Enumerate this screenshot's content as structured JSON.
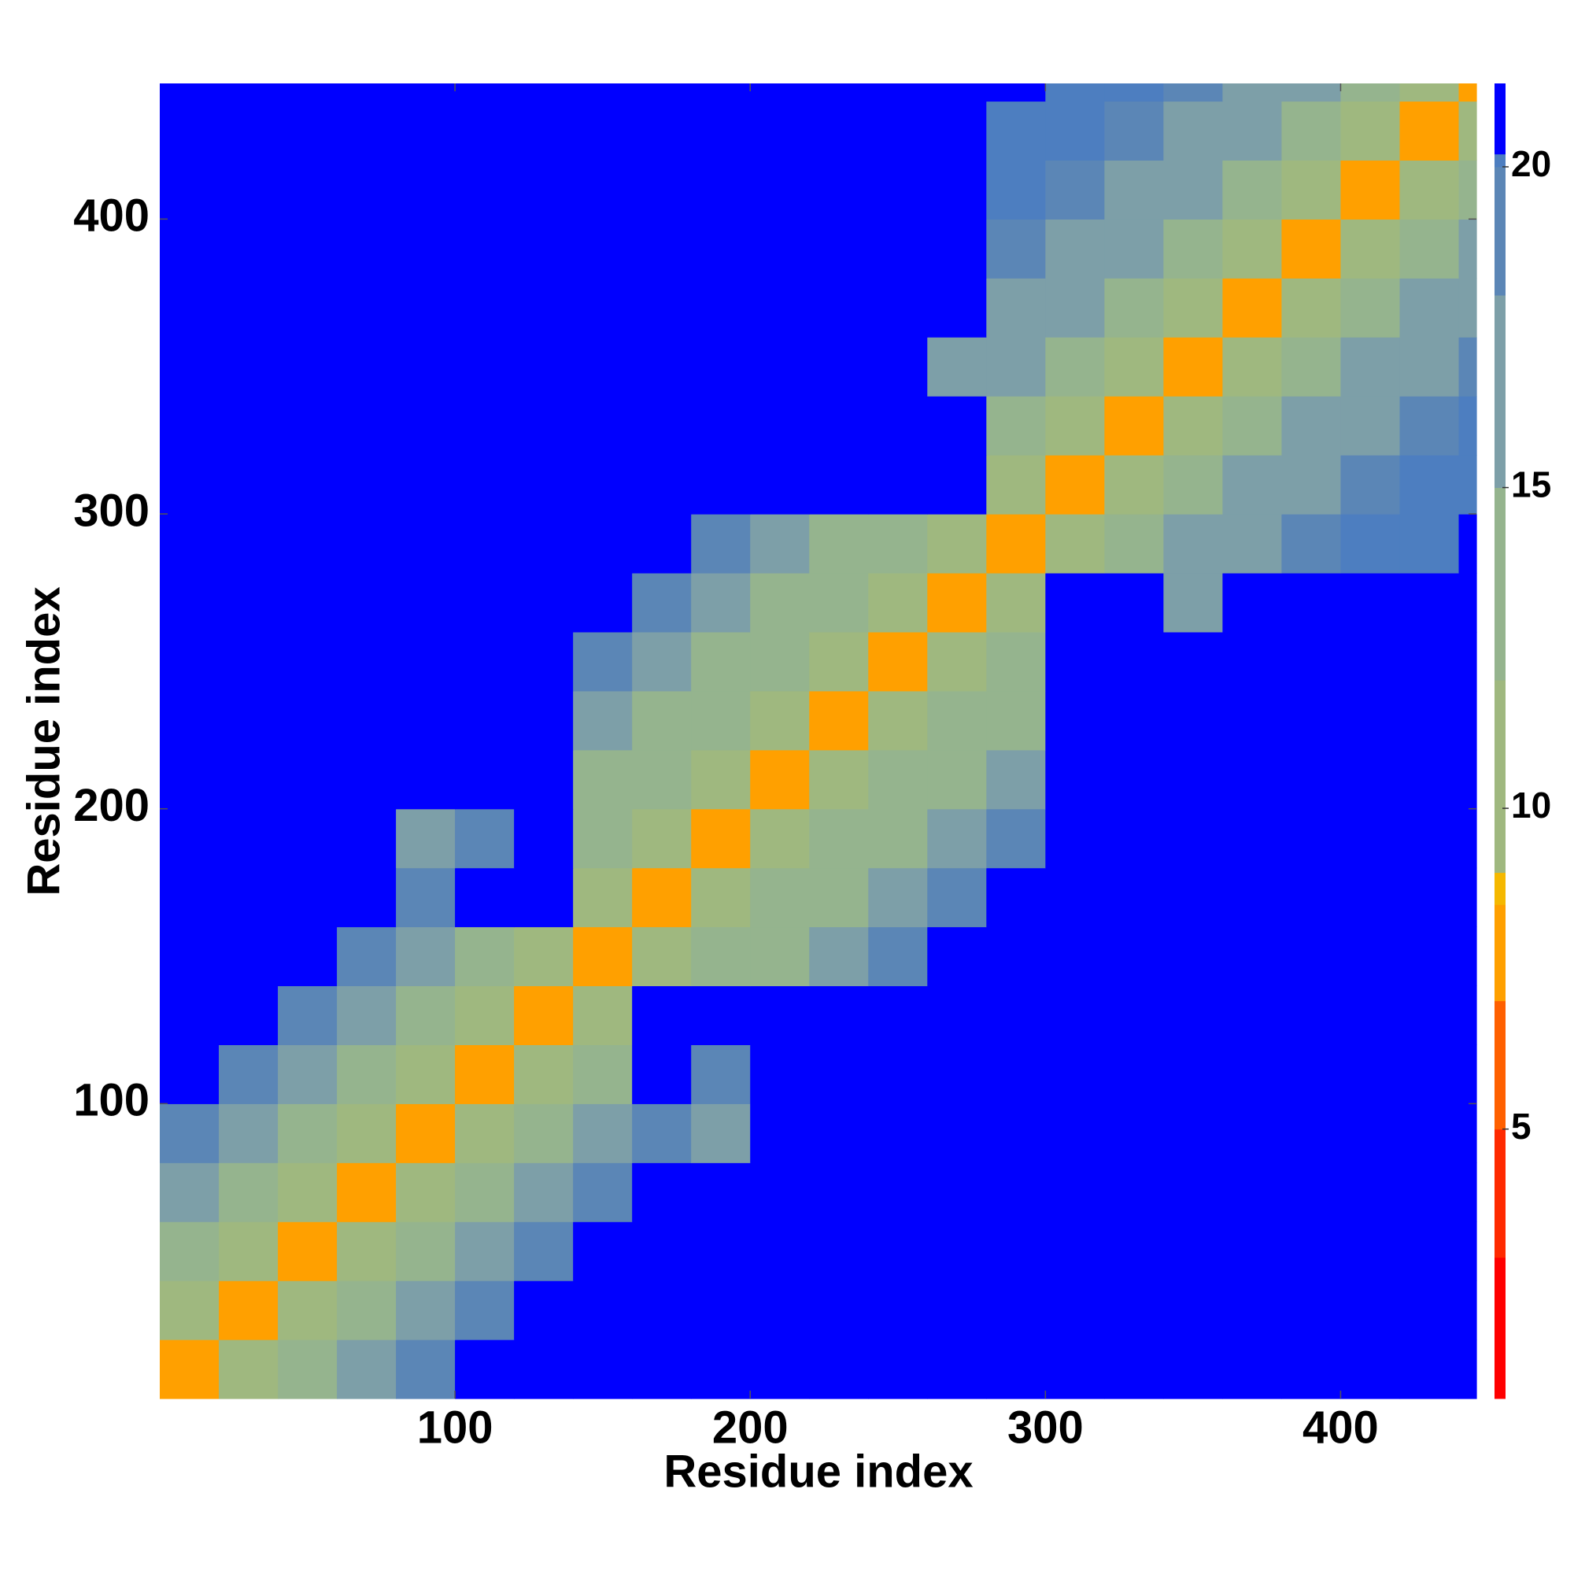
{
  "chart_data": {
    "type": "heatmap",
    "xlabel": "Residue index",
    "ylabel": "Residue index",
    "xbins": [
      0,
      20,
      40,
      60,
      80,
      100,
      120,
      140,
      160,
      180,
      200,
      220,
      240,
      260,
      280,
      300,
      320,
      340,
      360,
      380,
      400,
      420,
      440,
      446
    ],
    "ybins": [
      0,
      20,
      40,
      60,
      80,
      100,
      120,
      140,
      160,
      180,
      200,
      220,
      240,
      260,
      280,
      300,
      320,
      340,
      360,
      380,
      400,
      420,
      440,
      446
    ],
    "z": [
      [
        7,
        11,
        13,
        16,
        18,
        21,
        21,
        21,
        21,
        21,
        21,
        21,
        21,
        21,
        21,
        21,
        21,
        21,
        21,
        21,
        21,
        21,
        21
      ],
      [
        11,
        7,
        11,
        13,
        16,
        18,
        21,
        21,
        21,
        21,
        21,
        21,
        21,
        21,
        21,
        21,
        21,
        21,
        21,
        21,
        21,
        21,
        21
      ],
      [
        13,
        11,
        7,
        11,
        13,
        16,
        18,
        21,
        21,
        21,
        21,
        21,
        21,
        21,
        21,
        21,
        21,
        21,
        21,
        21,
        21,
        21,
        21
      ],
      [
        16,
        13,
        11,
        7,
        11,
        13,
        16,
        18,
        21,
        21,
        21,
        21,
        21,
        21,
        21,
        21,
        21,
        21,
        21,
        21,
        21,
        21,
        21
      ],
      [
        18,
        16,
        13,
        11,
        7,
        11,
        13,
        16,
        18,
        17,
        21,
        21,
        21,
        21,
        21,
        21,
        21,
        21,
        21,
        21,
        21,
        21,
        21
      ],
      [
        21,
        18,
        16,
        13,
        11,
        7,
        11,
        13,
        21,
        18,
        21,
        21,
        21,
        21,
        21,
        21,
        21,
        21,
        21,
        21,
        21,
        21,
        21
      ],
      [
        21,
        21,
        18,
        16,
        13,
        11,
        7,
        11,
        21,
        21,
        21,
        21,
        21,
        21,
        21,
        21,
        21,
        21,
        21,
        21,
        21,
        21,
        21
      ],
      [
        21,
        21,
        21,
        18,
        16,
        13,
        11,
        7,
        11,
        12,
        14,
        17,
        19,
        21,
        21,
        21,
        21,
        21,
        21,
        21,
        21,
        21,
        21
      ],
      [
        21,
        21,
        21,
        21,
        18,
        21,
        21,
        11,
        7,
        11,
        12,
        14,
        17,
        19,
        21,
        21,
        21,
        21,
        21,
        21,
        21,
        21,
        21
      ],
      [
        21,
        21,
        21,
        21,
        17,
        18,
        21,
        12,
        11,
        7,
        11,
        12,
        14,
        17,
        19,
        21,
        21,
        21,
        21,
        21,
        21,
        21,
        21
      ],
      [
        21,
        21,
        21,
        21,
        21,
        21,
        21,
        14,
        12,
        11,
        7,
        11,
        12,
        14,
        17,
        21,
        21,
        21,
        21,
        21,
        21,
        21,
        21
      ],
      [
        21,
        21,
        21,
        21,
        21,
        21,
        21,
        17,
        14,
        12,
        11,
        7,
        11,
        12,
        14,
        21,
        21,
        21,
        21,
        21,
        21,
        21,
        21
      ],
      [
        21,
        21,
        21,
        21,
        21,
        21,
        21,
        19,
        17,
        14,
        12,
        11,
        7,
        11,
        12,
        21,
        21,
        21,
        21,
        21,
        21,
        21,
        21
      ],
      [
        21,
        21,
        21,
        21,
        21,
        21,
        21,
        21,
        19,
        17,
        14,
        12,
        11,
        7,
        11,
        21,
        21,
        17,
        21,
        21,
        21,
        21,
        21
      ],
      [
        21,
        21,
        21,
        21,
        21,
        21,
        21,
        21,
        21,
        19,
        17,
        14,
        12,
        11,
        7,
        11,
        13,
        15,
        17,
        19,
        20,
        20,
        21
      ],
      [
        21,
        21,
        21,
        21,
        21,
        21,
        21,
        21,
        21,
        21,
        21,
        21,
        21,
        21,
        11,
        7,
        11,
        13,
        15,
        17,
        19,
        20,
        20
      ],
      [
        21,
        21,
        21,
        21,
        21,
        21,
        21,
        21,
        21,
        21,
        21,
        21,
        21,
        21,
        13,
        11,
        7,
        11,
        13,
        15,
        17,
        19,
        20
      ],
      [
        21,
        21,
        21,
        21,
        21,
        21,
        21,
        21,
        21,
        21,
        21,
        21,
        21,
        17,
        15,
        13,
        11,
        7,
        11,
        13,
        15,
        17,
        19
      ],
      [
        21,
        21,
        21,
        21,
        21,
        21,
        21,
        21,
        21,
        21,
        21,
        21,
        21,
        21,
        17,
        15,
        13,
        11,
        7,
        11,
        13,
        15,
        17
      ],
      [
        21,
        21,
        21,
        21,
        21,
        21,
        21,
        21,
        21,
        21,
        21,
        21,
        21,
        21,
        19,
        17,
        15,
        13,
        11,
        7,
        11,
        13,
        15
      ],
      [
        21,
        21,
        21,
        21,
        21,
        21,
        21,
        21,
        21,
        21,
        21,
        21,
        21,
        21,
        20,
        19,
        17,
        15,
        13,
        11,
        7,
        11,
        13
      ],
      [
        21,
        21,
        21,
        21,
        21,
        21,
        21,
        21,
        21,
        21,
        21,
        21,
        21,
        21,
        20,
        20,
        19,
        17,
        15,
        13,
        11,
        7,
        11
      ],
      [
        21,
        21,
        21,
        21,
        21,
        21,
        21,
        21,
        21,
        21,
        21,
        21,
        21,
        21,
        21,
        20,
        20,
        19,
        17,
        15,
        13,
        11,
        7
      ]
    ],
    "xlim": [
      0,
      446
    ],
    "ylim": [
      0,
      446
    ],
    "xticks": [
      100,
      200,
      300,
      400
    ],
    "yticks": [
      100,
      200,
      300,
      400
    ],
    "zlim": [
      0.8,
      21.3
    ],
    "zticks": [
      5,
      10,
      15,
      20
    ],
    "colorscale": [
      [
        0.8,
        "#ff0000"
      ],
      [
        3,
        "#ff2a00"
      ],
      [
        5,
        "#ff6000"
      ],
      [
        7,
        "#ffa000"
      ],
      [
        8.5,
        "#f5b800"
      ],
      [
        9,
        "#9fb87f"
      ],
      [
        12,
        "#95b48e"
      ],
      [
        15,
        "#7d9fa8"
      ],
      [
        18,
        "#5b86b6"
      ],
      [
        20,
        "#4d7ec0"
      ],
      [
        20.2,
        "#0000ff"
      ]
    ]
  }
}
